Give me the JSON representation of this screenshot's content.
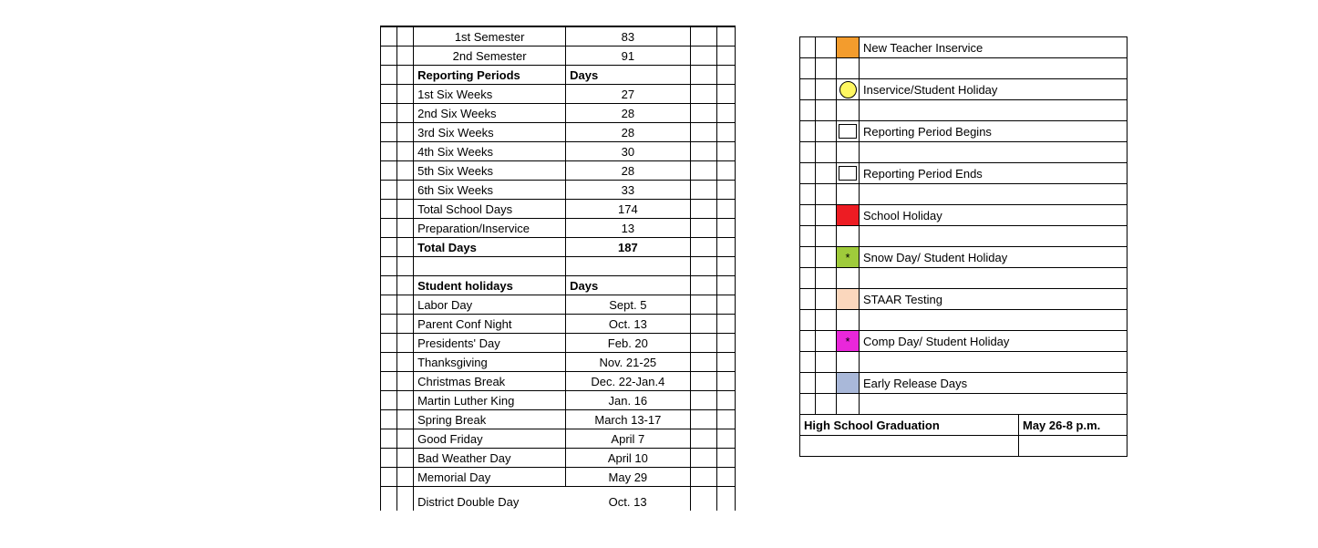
{
  "left": {
    "semesters": [
      {
        "label": "1st Semester",
        "value": "83"
      },
      {
        "label": "2nd Semester",
        "value": "91"
      }
    ],
    "reporting_header_label": "Reporting Periods",
    "reporting_header_days": "Days",
    "reporting_rows": [
      {
        "label": "1st Six Weeks",
        "value": "27"
      },
      {
        "label": "2nd Six Weeks",
        "value": "28"
      },
      {
        "label": "3rd Six Weeks",
        "value": "28"
      },
      {
        "label": "4th Six Weeks",
        "value": "30"
      },
      {
        "label": "5th Six Weeks",
        "value": "28"
      },
      {
        "label": "6th Six Weeks",
        "value": "33"
      },
      {
        "label": "Total School Days",
        "value": "174"
      },
      {
        "label": "Preparation/Inservice",
        "value": "13"
      }
    ],
    "total_days_label": "Total Days",
    "total_days_value": "187",
    "holidays_header_label": "Student holidays",
    "holidays_header_days": "Days",
    "holidays": [
      {
        "label": "Labor Day",
        "value": "Sept. 5"
      },
      {
        "label": "Parent Conf Night",
        "value": "Oct. 13"
      },
      {
        "label": "Presidents' Day",
        "value": "Feb. 20"
      },
      {
        "label": "Thanksgiving",
        "value": "Nov. 21-25"
      },
      {
        "label": "Christmas Break",
        "value": "Dec. 22-Jan.4"
      },
      {
        "label": "Martin Luther King",
        "value": "Jan. 16"
      },
      {
        "label": "Spring Break",
        "value": "March 13-17"
      },
      {
        "label": "Good Friday",
        "value": "April 7"
      },
      {
        "label": "Bad Weather Day",
        "value": "April 10"
      },
      {
        "label": "Memorial Day",
        "value": "May 29"
      },
      {
        "label": "District Double Day",
        "value": "Oct. 13"
      }
    ]
  },
  "legend": {
    "items": [
      {
        "kind": "fill",
        "color": "#f39c2d",
        "mark": "",
        "label": "New Teacher Inservice"
      },
      {
        "kind": "circle",
        "color": "#fff761",
        "mark": "",
        "label": "Inservice/Student Holiday"
      },
      {
        "kind": "box",
        "color": "#ffffff",
        "mark": "",
        "label": "Reporting Period Begins"
      },
      {
        "kind": "box",
        "color": "#ffffff",
        "mark": "",
        "label": "Reporting Period Ends"
      },
      {
        "kind": "fill",
        "color": "#ed1c23",
        "mark": "",
        "label": "School Holiday"
      },
      {
        "kind": "fill",
        "color": "#9fcb3b",
        "mark": "*",
        "label": "Snow Day/ Student Holiday"
      },
      {
        "kind": "fill",
        "color": "#fbd7bd",
        "mark": "",
        "label": "STAAR Testing"
      },
      {
        "kind": "fill",
        "color": "#e927da",
        "mark": "*",
        "label": "Comp Day/ Student Holiday"
      },
      {
        "kind": "fill",
        "color": "#a9b8d9",
        "mark": "",
        "label": "Early Release Days"
      }
    ],
    "grad_label": "High School Graduation",
    "grad_value": "May 26-8 p.m."
  },
  "style": {
    "font_family": "Arial",
    "text_color": "#000000",
    "border_color": "#000000",
    "background": "#ffffff"
  }
}
